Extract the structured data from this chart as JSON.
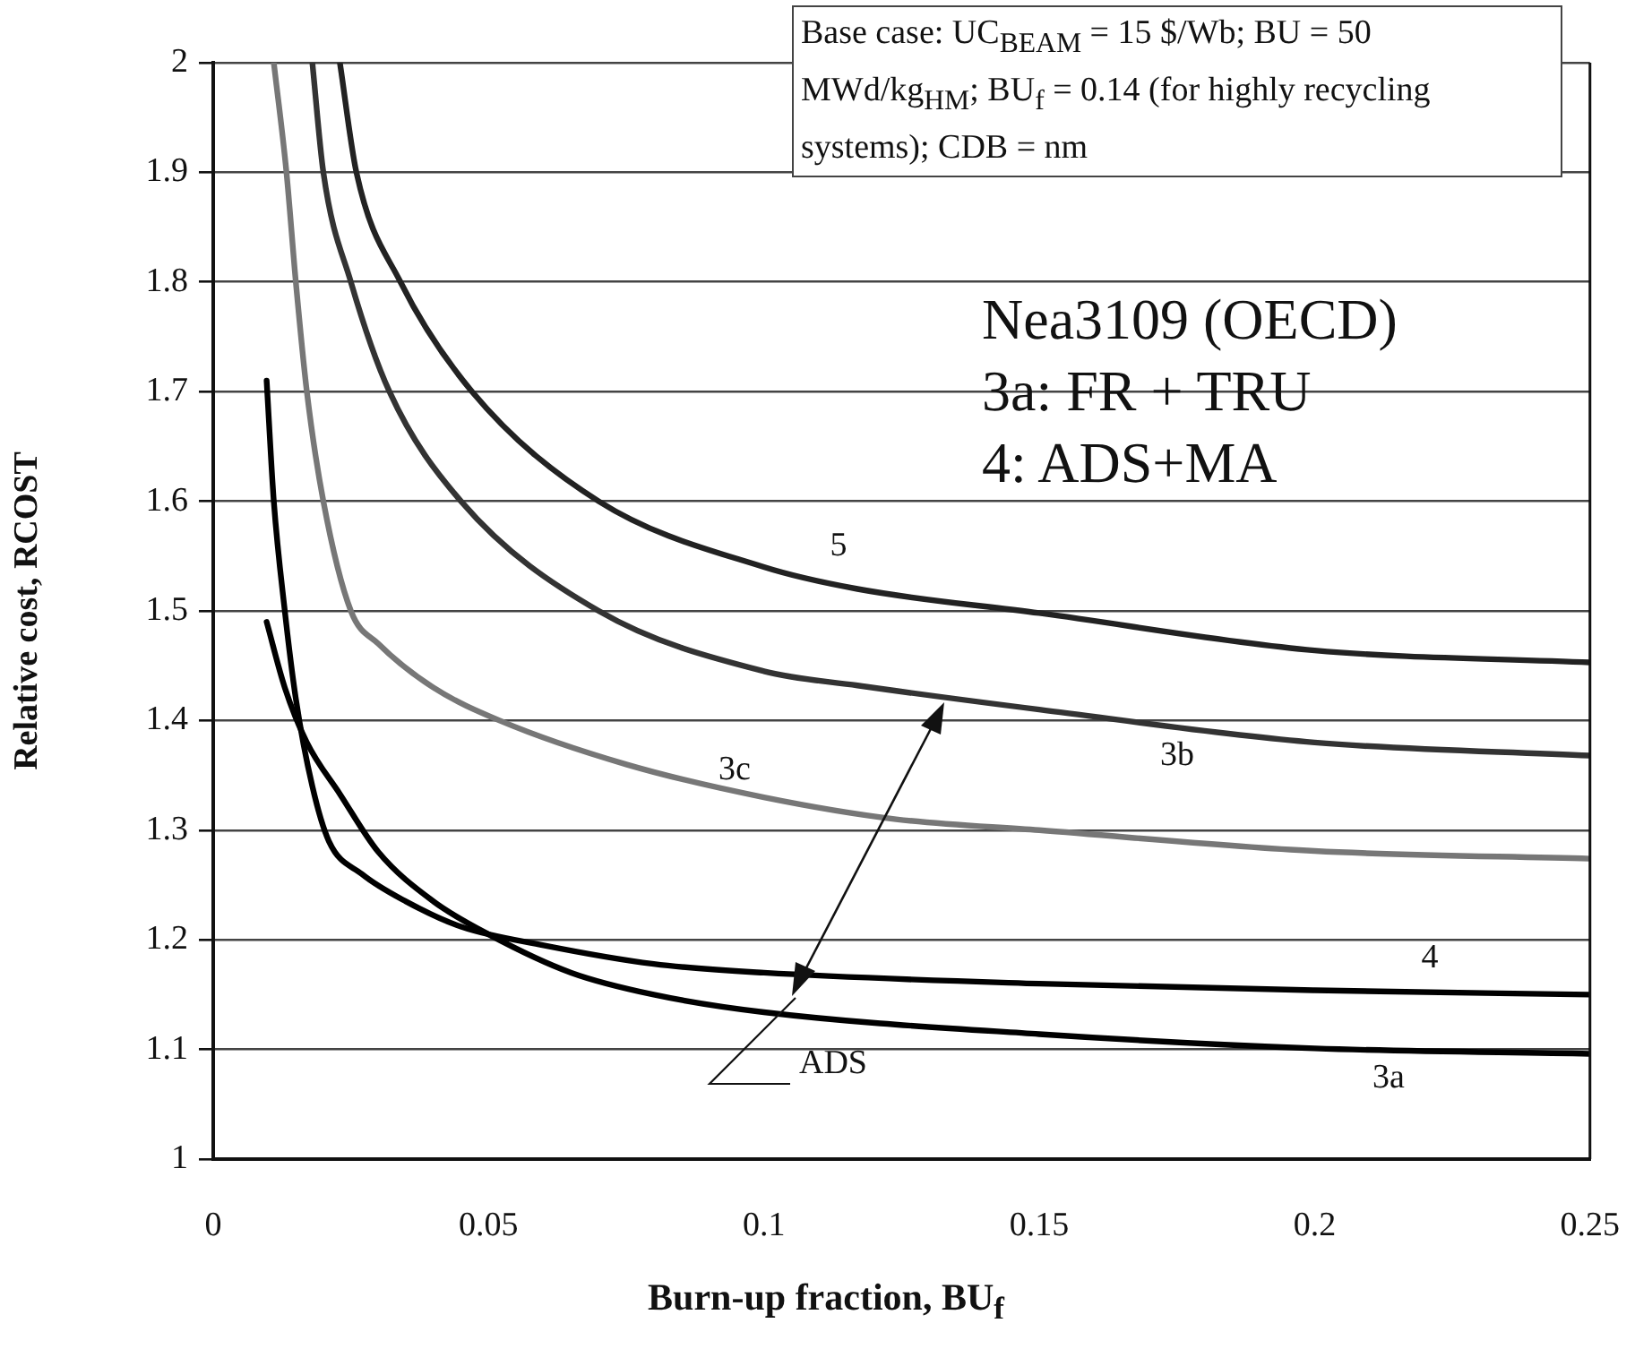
{
  "chart_data": {
    "type": "line",
    "xlabel": "Burn-up fraction, BU$_{f}$",
    "ylabel": "Relative cost, RCOST",
    "xlim": [
      0,
      0.25
    ],
    "xticks": [
      0,
      0.05,
      0.1,
      0.15,
      0.2,
      0.25
    ],
    "ylim": [
      1,
      2
    ],
    "yticks": [
      1,
      1.1,
      1.2,
      1.3,
      1.4,
      1.5,
      1.6,
      1.7,
      1.8,
      1.9,
      2
    ],
    "grid": "y",
    "legend": false,
    "marker": "none",
    "line_style": "solid",
    "series": [
      {
        "color": "#222222",
        "x": [
          0.023,
          0.026,
          0.034,
          0.047,
          0.07,
          0.1,
          0.117,
          0.15,
          0.2,
          0.25
        ],
        "values": [
          2,
          1.9,
          1.8,
          1.7,
          1.6,
          1.54,
          1.52,
          1.498,
          1.464,
          1.453
        ]
      },
      {
        "color": "#333333",
        "x": [
          0.018,
          0.02,
          0.025,
          0.032,
          0.045,
          0.07,
          0.1,
          0.117,
          0.15,
          0.2,
          0.25
        ],
        "values": [
          2,
          1.9,
          1.8,
          1.7,
          1.6,
          1.5,
          1.445,
          1.432,
          1.41,
          1.38,
          1.368
        ]
      },
      {
        "color": "#777777",
        "x": [
          0.011,
          0.0133,
          0.015,
          0.017,
          0.02,
          0.025,
          0.03,
          0.04,
          0.052,
          0.075,
          0.1,
          0.124,
          0.15,
          0.2,
          0.25
        ],
        "values": [
          2,
          1.9,
          1.8,
          1.7,
          1.6,
          1.5,
          1.47,
          1.43,
          1.4,
          1.36,
          1.33,
          1.31,
          1.3,
          1.281,
          1.274
        ]
      },
      {
        "color": "#000000",
        "x": [
          0.0097,
          0.011,
          0.013,
          0.015,
          0.018,
          0.021,
          0.027,
          0.035,
          0.045,
          0.06,
          0.08,
          0.1,
          0.15,
          0.2,
          0.25
        ],
        "values": [
          1.71,
          1.6,
          1.5,
          1.42,
          1.34,
          1.29,
          1.26,
          1.235,
          1.212,
          1.195,
          1.178,
          1.17,
          1.16,
          1.154,
          1.15
        ]
      },
      {
        "color": "#000000",
        "x": [
          0.0097,
          0.013,
          0.017,
          0.023,
          0.03,
          0.04,
          0.05,
          0.065,
          0.08,
          0.1,
          0.15,
          0.2,
          0.25
        ],
        "values": [
          1.49,
          1.43,
          1.38,
          1.333,
          1.28,
          1.235,
          1.205,
          1.17,
          1.15,
          1.134,
          1.114,
          1.101,
          1.096
        ]
      }
    ],
    "annotations": [
      "Base case: UC$_{BEAM}$ = 15 $/Wb; BU = 50 MWd/kg$_{HM}$; BU$_{f}$ = 0.14 (for highly recycling systems); CDB = nm",
      "Nea3109 (OECD)",
      "3a: FR + TRU",
      "4: ADS+MA",
      "5",
      "3c",
      "3b",
      "4",
      "3a",
      "ADS"
    ]
  }
}
